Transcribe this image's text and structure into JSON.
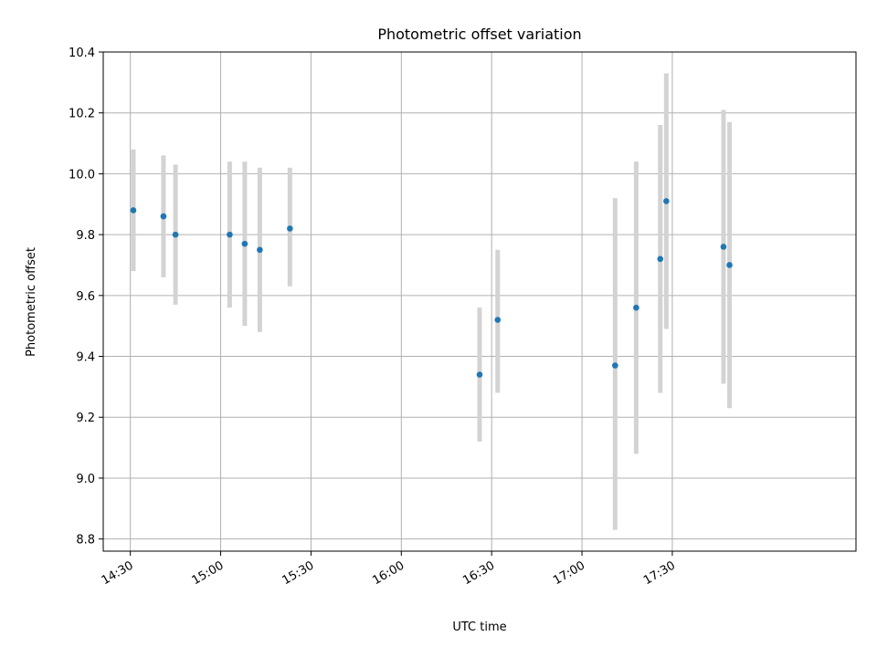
{
  "chart_data": {
    "type": "scatter",
    "title": "Photometric offset variation",
    "xlabel": "UTC time",
    "ylabel": "Photometric offset",
    "x_axis_type": "time",
    "xlim": [
      "14:21",
      "18:31"
    ],
    "ylim": [
      8.76,
      10.4
    ],
    "x_ticks": [
      "14:30",
      "15:00",
      "15:30",
      "16:00",
      "16:30",
      "17:00",
      "17:30"
    ],
    "y_ticks": [
      8.8,
      9.0,
      9.2,
      9.4,
      9.6,
      9.8,
      10.0,
      10.2,
      10.4
    ],
    "y_tick_labels": [
      "8.8",
      "9.0",
      "9.2",
      "9.4",
      "9.6",
      "9.8",
      "10.0",
      "10.2",
      "10.4"
    ],
    "grid": true,
    "point_color": "#1f77b4",
    "errorbar_color": "#d3d3d3",
    "points": [
      {
        "x": "14:31",
        "y": 9.88,
        "yerr_low": 9.68,
        "yerr_high": 10.08
      },
      {
        "x": "14:41",
        "y": 9.86,
        "yerr_low": 9.66,
        "yerr_high": 10.06
      },
      {
        "x": "14:45",
        "y": 9.8,
        "yerr_low": 9.57,
        "yerr_high": 10.03
      },
      {
        "x": "15:03",
        "y": 9.8,
        "yerr_low": 9.56,
        "yerr_high": 10.04
      },
      {
        "x": "15:08",
        "y": 9.77,
        "yerr_low": 9.5,
        "yerr_high": 10.04
      },
      {
        "x": "15:13",
        "y": 9.75,
        "yerr_low": 9.48,
        "yerr_high": 10.02
      },
      {
        "x": "15:23",
        "y": 9.82,
        "yerr_low": 9.63,
        "yerr_high": 10.02
      },
      {
        "x": "16:26",
        "y": 9.34,
        "yerr_low": 9.12,
        "yerr_high": 9.56
      },
      {
        "x": "16:32",
        "y": 9.52,
        "yerr_low": 9.28,
        "yerr_high": 9.75
      },
      {
        "x": "17:11",
        "y": 9.37,
        "yerr_low": 8.83,
        "yerr_high": 9.92
      },
      {
        "x": "17:18",
        "y": 9.56,
        "yerr_low": 9.08,
        "yerr_high": 10.04
      },
      {
        "x": "17:26",
        "y": 9.72,
        "yerr_low": 9.28,
        "yerr_high": 10.16
      },
      {
        "x": "17:28",
        "y": 9.91,
        "yerr_low": 9.49,
        "yerr_high": 10.33
      },
      {
        "x": "17:47",
        "y": 9.76,
        "yerr_low": 9.31,
        "yerr_high": 10.21
      },
      {
        "x": "17:49",
        "y": 9.7,
        "yerr_low": 9.23,
        "yerr_high": 10.17
      }
    ]
  }
}
